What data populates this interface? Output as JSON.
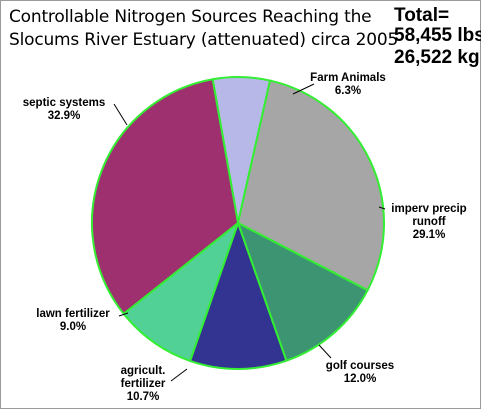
{
  "chart_data": {
    "type": "pie",
    "title": "Controllable Nitrogen Sources Reaching the Slocums River Estuary  (attenuated) circa 2005",
    "title_lines": [
      "Controllable Nitrogen Sources Reaching the",
      "Slocums River Estuary  (attenuated) circa 2005"
    ],
    "totals": {
      "label": "Total=",
      "lbs": "58,455 lbs",
      "kg": "26,522 kg"
    },
    "slices": [
      {
        "label_lines": [
          "Farm Animals"
        ],
        "value": 6.3,
        "display": "6.3%",
        "color": "#b8b8e8"
      },
      {
        "label_lines": [
          "imperv precip",
          "runoff"
        ],
        "value": 29.1,
        "display": "29.1%",
        "color": "#a6a6a6"
      },
      {
        "label_lines": [
          "golf courses"
        ],
        "value": 12.0,
        "display": "12.0%",
        "color": "#3d9473"
      },
      {
        "label_lines": [
          "agricult.",
          "fertilizer"
        ],
        "value": 10.7,
        "display": "10.7%",
        "color": "#333391"
      },
      {
        "label_lines": [
          "lawn fertilizer"
        ],
        "value": 9.0,
        "display": "9.0%",
        "color": "#52d197"
      },
      {
        "label_lines": [
          "septic systems"
        ],
        "value": 32.9,
        "display": "32.9%",
        "color": "#9e3070"
      }
    ],
    "start_angle_deg": -10,
    "direction": "clockwise",
    "slice_border_color": "#33ee33"
  }
}
